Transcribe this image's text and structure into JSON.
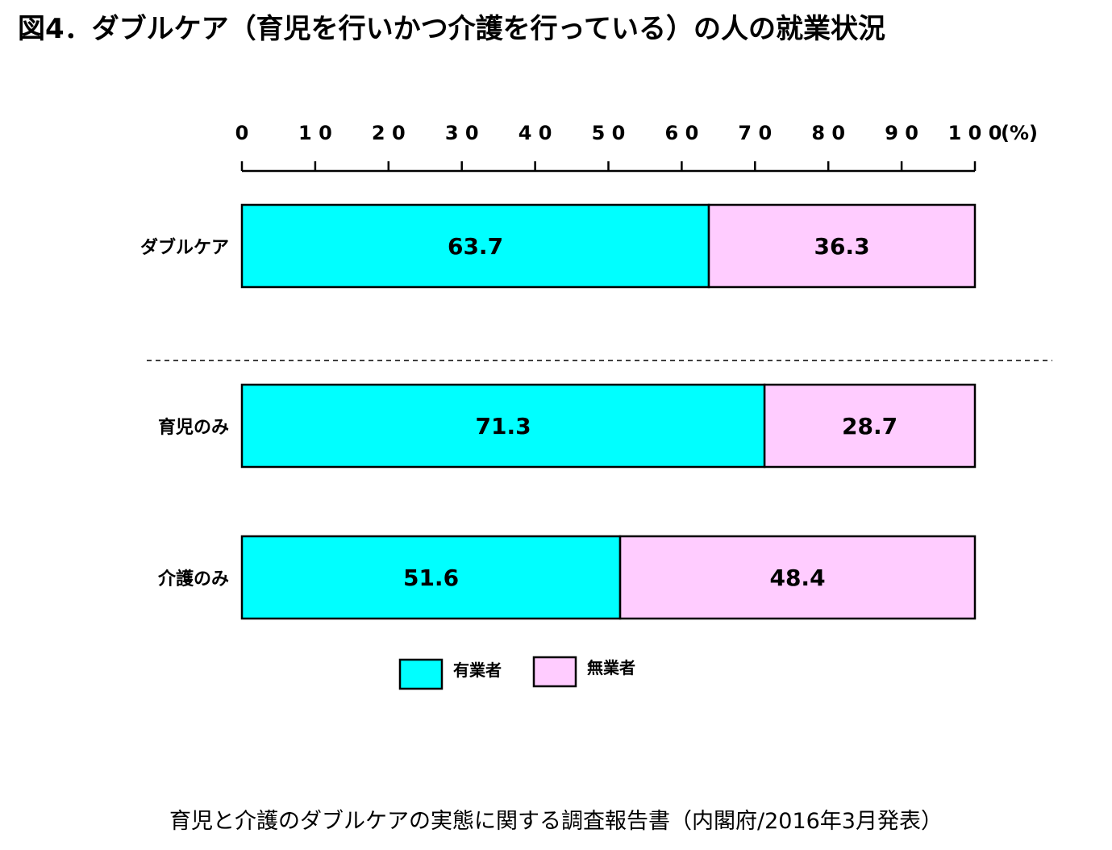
{
  "title": "図4．ダブルケア（育児を行いかつ介護を行っている）の人の就業状況",
  "source": "育児と介護のダブルケアの実態に関する調査報告書（内閣府/2016年3月発表）",
  "chart_data": {
    "type": "bar",
    "orientation": "horizontal",
    "stacked": true,
    "categories": [
      "ダブルケア",
      "育児のみ",
      "介護のみ"
    ],
    "series": [
      {
        "name": "有業者",
        "values": [
          63.7,
          71.3,
          51.6
        ],
        "color": "#00FFFF"
      },
      {
        "name": "無業者",
        "values": [
          36.3,
          28.7,
          48.4
        ],
        "color": "#FFCCFF"
      }
    ],
    "value_labels": [
      [
        "63.7",
        "71.3",
        "51.6"
      ],
      [
        "36.3",
        "28.7",
        "48.4"
      ]
    ],
    "xlim": [
      0,
      100
    ],
    "xticks": [
      0,
      10,
      20,
      30,
      40,
      50,
      60,
      70,
      80,
      90,
      100
    ],
    "xtick_labels": [
      "0",
      "1 0",
      "2 0",
      "3 0",
      "4 0",
      "5 0",
      "6 0",
      "7 0",
      "8 0",
      "9 0",
      "1 0 0"
    ],
    "xunit": "(%)",
    "axis_position": "top",
    "grid": false,
    "legend_position": "bottom-center",
    "separator": "dashed line between first and second category"
  }
}
